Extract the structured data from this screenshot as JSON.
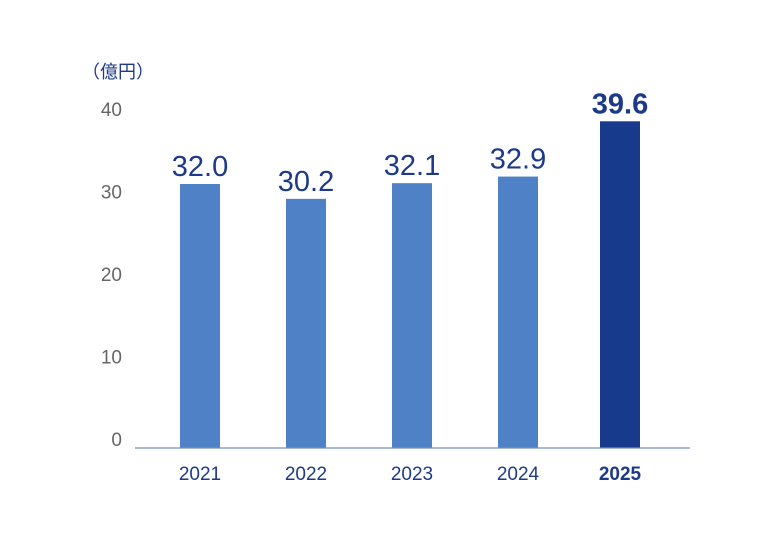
{
  "chart_data": {
    "type": "bar",
    "unit_label": "（億円）",
    "categories": [
      "2021",
      "2022",
      "2023",
      "2024",
      "2025"
    ],
    "values": [
      32.0,
      30.2,
      32.1,
      32.9,
      39.6
    ],
    "value_labels": [
      "32.0",
      "30.2",
      "32.1",
      "32.9",
      "39.6"
    ],
    "ylim": [
      0,
      40
    ],
    "yticks": [
      "0",
      "10",
      "20",
      "30",
      "40"
    ],
    "highlight_index": 4,
    "colors": {
      "bar": "#4e81c6",
      "highlight_bar": "#173a8c",
      "label": "#1d3a8a",
      "axis": "#7a8fb8",
      "tick": "#666666"
    },
    "title": "",
    "xlabel": "",
    "ylabel": "",
    "grid": false
  }
}
